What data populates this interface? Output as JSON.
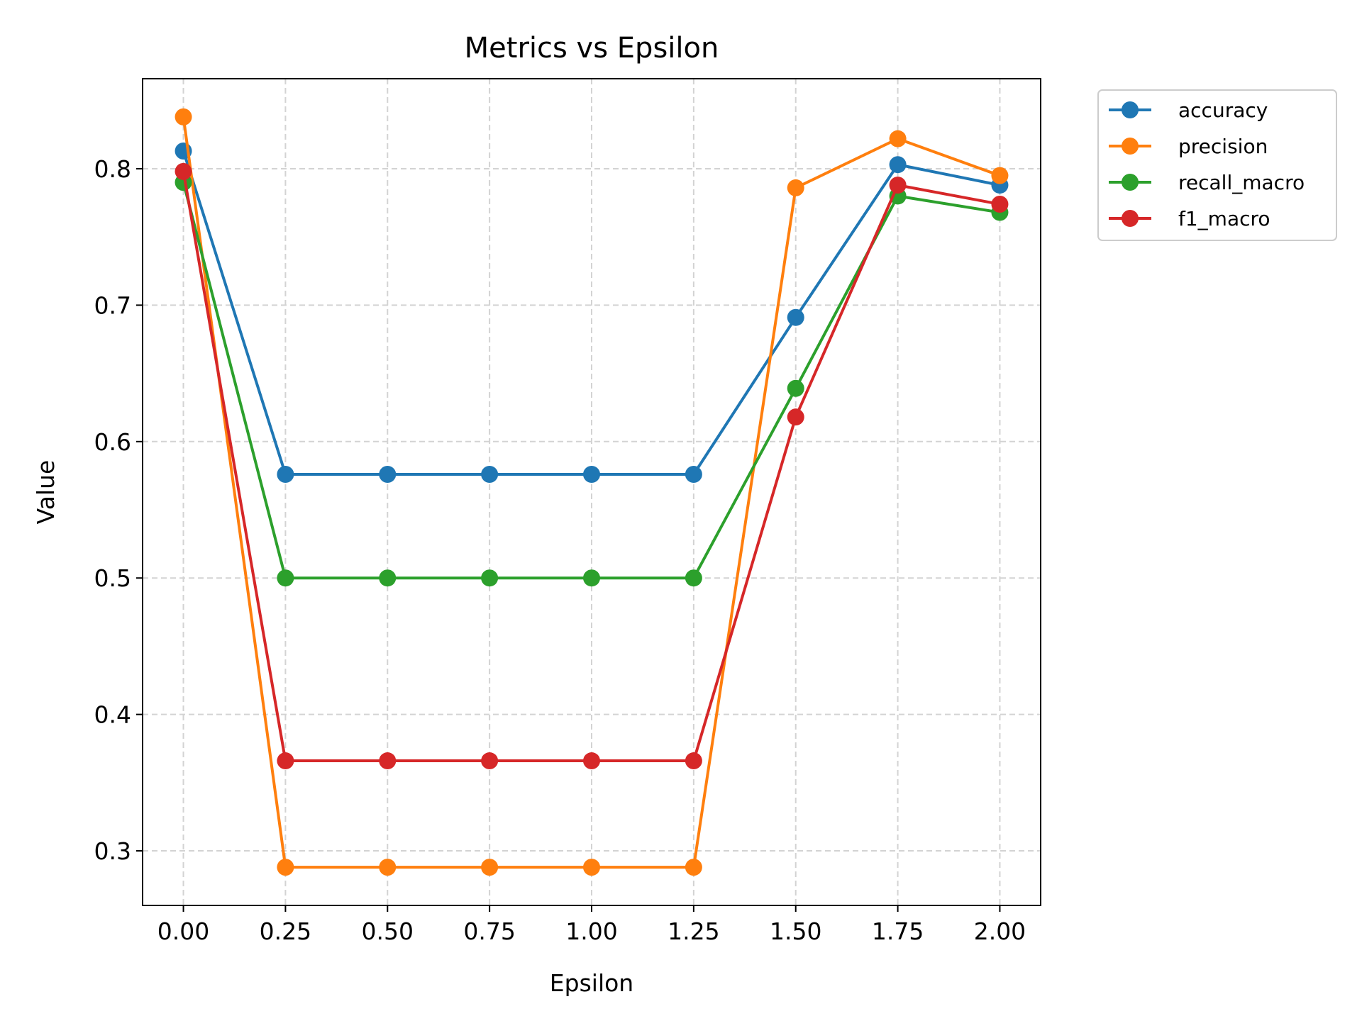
{
  "chart_data": {
    "type": "line",
    "title": "Metrics vs Epsilon",
    "xlabel": "Epsilon",
    "ylabel": "Value",
    "x": [
      0.0,
      0.25,
      0.5,
      0.75,
      1.0,
      1.25,
      1.5,
      1.75,
      2.0
    ],
    "xticks": [
      "0.00",
      "0.25",
      "0.50",
      "0.75",
      "1.00",
      "1.25",
      "1.50",
      "1.75",
      "2.00"
    ],
    "yticks": [
      "0.3",
      "0.4",
      "0.5",
      "0.6",
      "0.7",
      "0.8"
    ],
    "xlim": [
      -0.1,
      2.1
    ],
    "ylim": [
      0.26,
      0.866
    ],
    "grid": true,
    "legend_position": "outside-top-right",
    "series": [
      {
        "name": "accuracy",
        "color": "#1f77b4",
        "values": [
          0.813,
          0.576,
          0.576,
          0.576,
          0.576,
          0.576,
          0.691,
          0.803,
          0.788
        ]
      },
      {
        "name": "precision",
        "color": "#ff7f0e",
        "values": [
          0.838,
          0.288,
          0.288,
          0.288,
          0.288,
          0.288,
          0.786,
          0.822,
          0.795
        ]
      },
      {
        "name": "recall_macro",
        "color": "#2ca02c",
        "values": [
          0.79,
          0.5,
          0.5,
          0.5,
          0.5,
          0.5,
          0.639,
          0.78,
          0.768
        ]
      },
      {
        "name": "f1_macro",
        "color": "#d62728",
        "values": [
          0.798,
          0.366,
          0.366,
          0.366,
          0.366,
          0.366,
          0.618,
          0.788,
          0.774
        ]
      }
    ]
  }
}
